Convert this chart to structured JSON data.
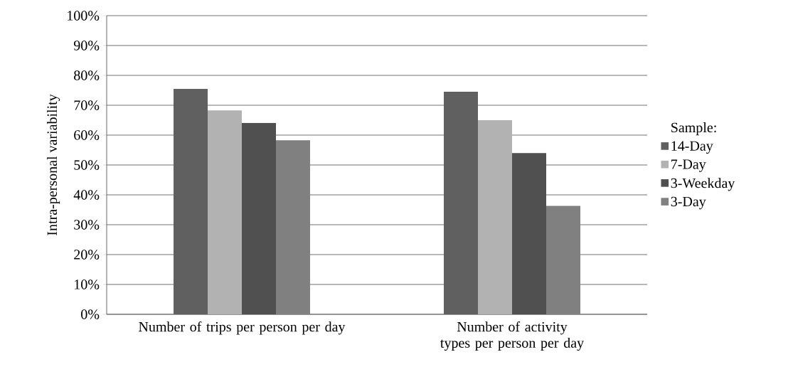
{
  "chart_data": {
    "type": "bar",
    "ylabel": "Intra-personal variability",
    "legend_title": "Sample:",
    "categories": [
      "Number of trips per person per day",
      "Number of activity types per person per day"
    ],
    "series": [
      {
        "name": "14-Day",
        "color": "#606060",
        "values": [
          75.5,
          74.5
        ]
      },
      {
        "name": "7-Day",
        "color": "#b2b2b2",
        "values": [
          68.3,
          65
        ]
      },
      {
        "name": "3-Weekday",
        "color": "#505050",
        "values": [
          64.1,
          54
        ]
      },
      {
        "name": "3-Day",
        "color": "#808080",
        "values": [
          58.3,
          36.3
        ]
      }
    ],
    "ylim": [
      0,
      100
    ],
    "yticks": [
      {
        "value": 0,
        "label": "0%"
      },
      {
        "value": 10,
        "label": "10%"
      },
      {
        "value": 20,
        "label": "20%"
      },
      {
        "value": 30,
        "label": "30%"
      },
      {
        "value": 40,
        "label": "40%"
      },
      {
        "value": 50,
        "label": "50%"
      },
      {
        "value": 60,
        "label": "60%"
      },
      {
        "value": 70,
        "label": "70%"
      },
      {
        "value": 80,
        "label": "80%"
      },
      {
        "value": 90,
        "label": "90%"
      },
      {
        "value": 100,
        "label": "100%"
      }
    ],
    "grid": "y",
    "legend": "right"
  }
}
